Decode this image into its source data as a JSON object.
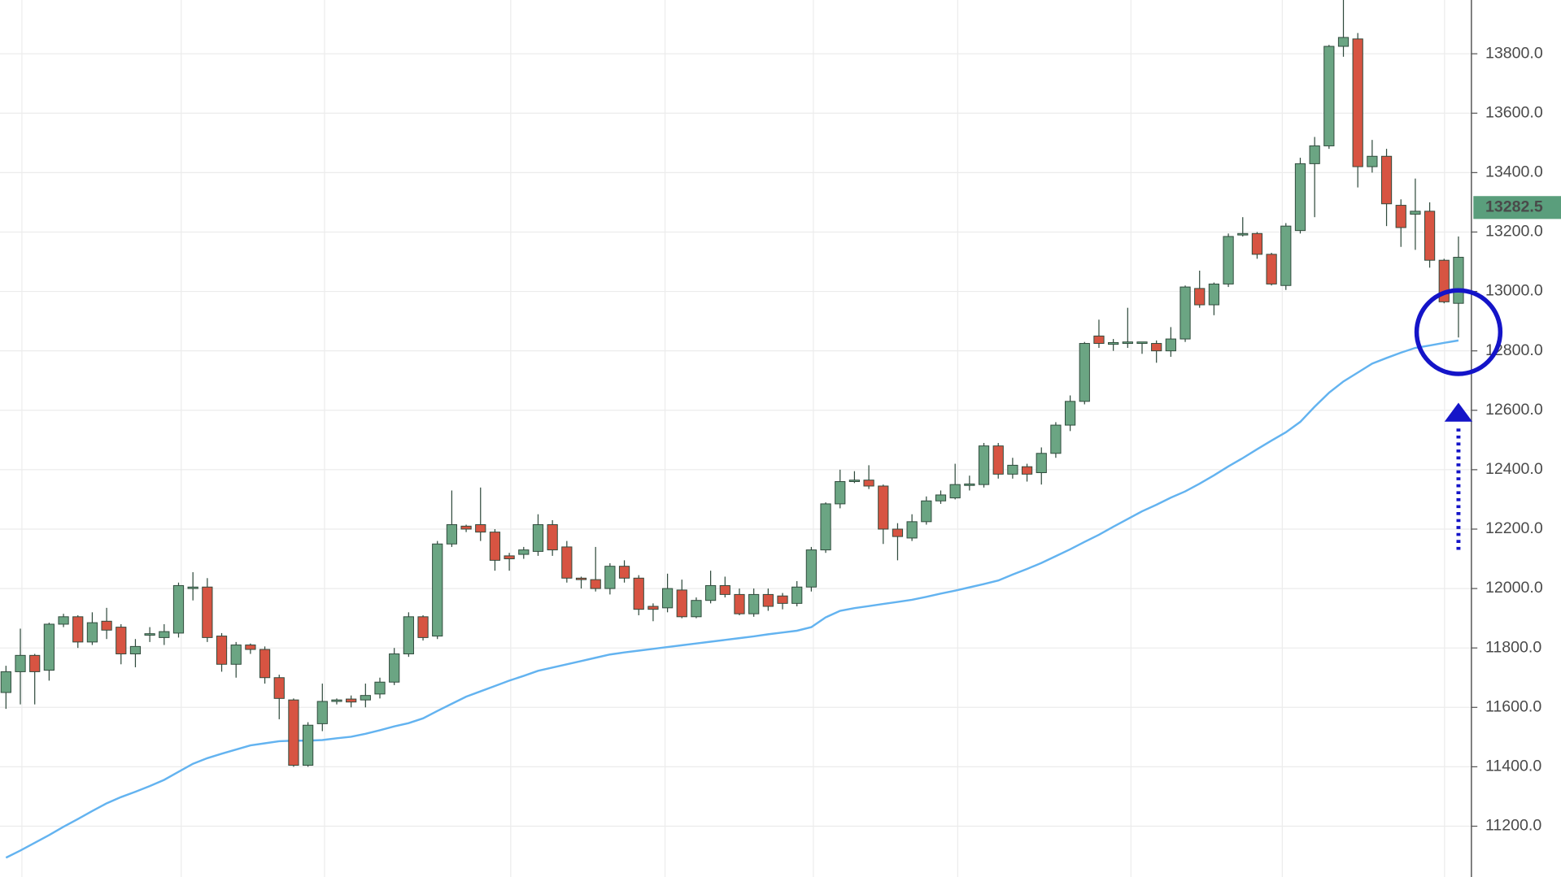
{
  "chart_data": {
    "type": "candlestick",
    "open": [
      11650,
      11720,
      11775,
      11725,
      11880,
      11905,
      11820,
      11890,
      11870,
      11780,
      11845,
      11835,
      11850,
      12000,
      12005,
      11840,
      11745,
      11810,
      11795,
      11700,
      11625,
      11405,
      11545,
      11620,
      11628,
      11625,
      11645,
      11685,
      11780,
      11905,
      11840,
      12150,
      12210,
      12215,
      12190,
      12110,
      12115,
      12125,
      12215,
      12140,
      12035,
      12030,
      12000,
      12075,
      12035,
      11940,
      11935,
      11995,
      11905,
      11960,
      12010,
      11980,
      11915,
      11980,
      11975,
      11950,
      12005,
      12130,
      12285,
      12360,
      12365,
      12345,
      12200,
      12170,
      12225,
      12295,
      12305,
      12350,
      12350,
      12480,
      12385,
      12410,
      12390,
      12455,
      12550,
      12630,
      12850,
      12822,
      12825,
      12825,
      12825,
      12800,
      12840,
      13010,
      12955,
      13025,
      13190,
      13195,
      13125,
      13020,
      13205,
      13430,
      13490,
      13825,
      13850,
      13420,
      13455,
      13290,
      13260,
      13270,
      13105,
      12960
    ],
    "high": [
      11740,
      11865,
      11780,
      11885,
      11915,
      11910,
      11920,
      11935,
      11880,
      11830,
      11870,
      11880,
      12020,
      12055,
      12035,
      11850,
      11820,
      11815,
      11805,
      11710,
      11630,
      11550,
      11680,
      11630,
      11640,
      11680,
      11700,
      11800,
      11920,
      11910,
      12160,
      12330,
      12215,
      12340,
      12200,
      12120,
      12140,
      12250,
      12230,
      12160,
      12040,
      12140,
      12085,
      12095,
      12045,
      11950,
      12050,
      12030,
      11970,
      12060,
      12040,
      12000,
      12000,
      12000,
      11985,
      12025,
      12140,
      12290,
      12400,
      12395,
      12415,
      12350,
      12220,
      12250,
      12310,
      12330,
      12420,
      12380,
      12490,
      12490,
      12440,
      12420,
      12475,
      12560,
      12650,
      12830,
      12905,
      12840,
      12945,
      12830,
      12835,
      12880,
      13020,
      13070,
      13030,
      13195,
      13250,
      13200,
      13130,
      13230,
      13450,
      13520,
      13830,
      13985,
      13870,
      13510,
      13480,
      13310,
      13380,
      13300,
      13110,
      13185
    ],
    "low": [
      11595,
      11610,
      11610,
      11690,
      11870,
      11800,
      11810,
      11830,
      11745,
      11735,
      11820,
      11810,
      11835,
      11960,
      11820,
      11720,
      11700,
      11780,
      11680,
      11560,
      11400,
      11400,
      11520,
      11610,
      11600,
      11600,
      11630,
      11675,
      11770,
      11825,
      11830,
      12140,
      12190,
      12160,
      12060,
      12060,
      12100,
      12110,
      12110,
      12020,
      12000,
      11990,
      11980,
      12020,
      11910,
      11890,
      11920,
      11900,
      11900,
      11950,
      11970,
      11910,
      11905,
      11925,
      11930,
      11940,
      11990,
      12120,
      12270,
      12355,
      12335,
      12150,
      12095,
      12160,
      12215,
      12285,
      12300,
      12330,
      12340,
      12370,
      12370,
      12360,
      12350,
      12440,
      12530,
      12620,
      12810,
      12800,
      12810,
      12790,
      12760,
      12780,
      12830,
      12945,
      12920,
      13015,
      13185,
      13110,
      13020,
      13005,
      13195,
      13250,
      13480,
      13790,
      13350,
      13400,
      13220,
      13150,
      13140,
      13080,
      12960,
      12845
    ],
    "close": [
      11720,
      11775,
      11720,
      11880,
      11905,
      11820,
      11885,
      11860,
      11780,
      11805,
      11848,
      11855,
      12010,
      12005,
      11835,
      11745,
      11810,
      11795,
      11700,
      11630,
      11405,
      11540,
      11620,
      11625,
      11618,
      11640,
      11685,
      11780,
      11905,
      11835,
      12150,
      12215,
      12200,
      12190,
      12095,
      12100,
      12130,
      12215,
      12130,
      12035,
      12030,
      12000,
      12075,
      12035,
      11930,
      11930,
      12000,
      11905,
      11960,
      12010,
      11980,
      11915,
      11980,
      11940,
      11950,
      12005,
      12130,
      12285,
      12360,
      12365,
      12345,
      12200,
      12175,
      12225,
      12295,
      12315,
      12350,
      12352,
      12480,
      12385,
      12415,
      12385,
      12455,
      12550,
      12630,
      12825,
      12825,
      12828,
      12830,
      12830,
      12800,
      12840,
      13015,
      12955,
      13025,
      13185,
      13195,
      13125,
      13025,
      13220,
      13430,
      13490,
      13825,
      13855,
      13420,
      13455,
      13295,
      13215,
      13270,
      13105,
      12965,
      13115
    ],
    "colors": {
      "up": "#6ba583",
      "down": "#d75442",
      "outline": "#2f4a3c"
    },
    "ma": {
      "color": "#63b3f0",
      "values": [
        11094,
        11118,
        11144,
        11170,
        11198,
        11224,
        11251,
        11277,
        11298,
        11316,
        11335,
        11356,
        11383,
        11410,
        11429,
        11444,
        11458,
        11472,
        11479,
        11486,
        11488,
        11488,
        11490,
        11496,
        11501,
        11511,
        11523,
        11536,
        11547,
        11563,
        11588,
        11612,
        11636,
        11654,
        11672,
        11690,
        11706,
        11723,
        11734,
        11745,
        11756,
        11767,
        11778,
        11785,
        11791,
        11797,
        11803,
        11809,
        11815,
        11821,
        11827,
        11833,
        11839,
        11846,
        11852,
        11858,
        11870,
        11903,
        11925,
        11934,
        11941,
        11948,
        11955,
        11962,
        11972,
        11983,
        11993,
        12004,
        12015,
        12027,
        12047,
        12066,
        12086,
        12109,
        12132,
        12157,
        12181,
        12208,
        12234,
        12260,
        12282,
        12306,
        12327,
        12353,
        12381,
        12411,
        12439,
        12469,
        12498,
        12526,
        12561,
        12612,
        12659,
        12697,
        12727,
        12757,
        12776,
        12794,
        12810,
        12818,
        12827,
        12835
      ]
    },
    "last_price": 13282.5,
    "last_price_color": "#5a9e7c",
    "ylim": [
      11029,
      13981
    ],
    "yticks": [
      {
        "value": 11200,
        "label": "11200.0"
      },
      {
        "value": 11400,
        "label": "11400.0"
      },
      {
        "value": 11600,
        "label": "11600.0"
      },
      {
        "value": 11800,
        "label": "11800.0"
      },
      {
        "value": 12000,
        "label": "12000.0"
      },
      {
        "value": 12200,
        "label": "12200.0"
      },
      {
        "value": 12400,
        "label": "12400.0"
      },
      {
        "value": 12600,
        "label": "12600.0"
      },
      {
        "value": 12800,
        "label": "12800.0"
      },
      {
        "value": 13000,
        "label": "13000.0"
      },
      {
        "value": 13200,
        "label": "13200.0"
      },
      {
        "value": 13400,
        "label": "13400.0"
      },
      {
        "value": 13600,
        "label": "13600.0"
      },
      {
        "value": 13800,
        "label": "13800.0"
      }
    ],
    "grid": true
  }
}
